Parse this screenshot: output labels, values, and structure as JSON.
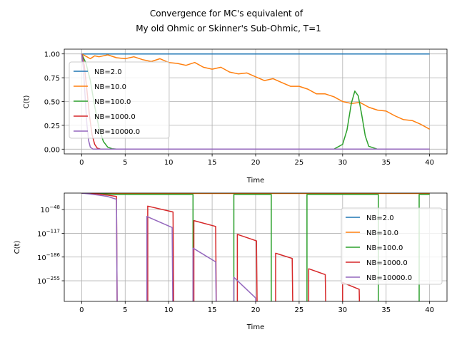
{
  "figure_title": [
    "Convergence for MC's equivalent of",
    "My old Ohmic or Skinner's Sub-Ohmic, T=1"
  ],
  "colors": {
    "NB=2.0": "#1f77b4",
    "NB=10.0": "#ff7f0e",
    "NB=100.0": "#2ca02c",
    "NB=1000.0": "#d62728",
    "NB=10000.0": "#9467bd"
  },
  "chart_data": [
    {
      "type": "line",
      "title": "",
      "xlabel": "Time",
      "ylabel": "C(t)",
      "xlim": [
        -2,
        42
      ],
      "ylim": [
        -0.05,
        1.05
      ],
      "xticks": [
        0,
        5,
        10,
        15,
        20,
        25,
        30,
        35,
        40
      ],
      "xtick_labels": [
        "0",
        "5",
        "10",
        "15",
        "20",
        "25",
        "30",
        "35",
        "40"
      ],
      "yticks": [
        0.0,
        0.25,
        0.5,
        0.75,
        1.0
      ],
      "ytick_labels": [
        "0.00",
        "0.25",
        "0.50",
        "0.75",
        "1.00"
      ],
      "grid": true,
      "legend_position": "center-left",
      "series": [
        {
          "name": "NB=2.0",
          "x": [
            0,
            40
          ],
          "y": [
            1.0,
            1.0
          ]
        },
        {
          "name": "NB=10.0",
          "x": [
            0,
            1,
            1.5,
            2,
            3,
            4,
            5,
            6,
            7,
            8,
            9,
            10,
            11,
            12,
            13,
            14,
            15,
            16,
            17,
            18,
            19,
            20,
            21,
            22,
            23,
            24,
            25,
            26,
            27,
            28,
            29,
            30,
            31,
            32,
            33,
            34,
            35,
            36,
            37,
            38,
            39,
            40
          ],
          "y": [
            1.0,
            0.95,
            0.98,
            0.97,
            0.99,
            0.96,
            0.95,
            0.97,
            0.94,
            0.92,
            0.95,
            0.91,
            0.9,
            0.88,
            0.91,
            0.86,
            0.84,
            0.86,
            0.81,
            0.79,
            0.8,
            0.76,
            0.72,
            0.74,
            0.7,
            0.66,
            0.66,
            0.63,
            0.58,
            0.58,
            0.55,
            0.5,
            0.48,
            0.49,
            0.44,
            0.41,
            0.4,
            0.35,
            0.31,
            0.3,
            0.26,
            0.21
          ]
        },
        {
          "name": "NB=100.0",
          "x": [
            0,
            0.5,
            1,
            1.5,
            2,
            2.5,
            3,
            3.5,
            4,
            29,
            30,
            30.5,
            31,
            31.4,
            31.8,
            32.2,
            32.6,
            33,
            34,
            40
          ],
          "y": [
            1.0,
            0.9,
            0.72,
            0.45,
            0.22,
            0.08,
            0.02,
            0.005,
            0.0,
            0.0,
            0.05,
            0.2,
            0.48,
            0.61,
            0.56,
            0.36,
            0.14,
            0.03,
            0.0,
            0.0
          ]
        },
        {
          "name": "NB=1000.0",
          "x": [
            0,
            0.3,
            0.6,
            0.9,
            1.2,
            1.5,
            1.8,
            2.2,
            40
          ],
          "y": [
            1.0,
            0.88,
            0.62,
            0.35,
            0.15,
            0.05,
            0.01,
            0.0,
            0.0
          ]
        },
        {
          "name": "NB=10000.0",
          "x": [
            0,
            0.2,
            0.4,
            0.6,
            0.8,
            1.0,
            1.3,
            40
          ],
          "y": [
            1.0,
            0.85,
            0.55,
            0.26,
            0.09,
            0.02,
            0.0,
            0.0
          ]
        }
      ]
    },
    {
      "type": "line",
      "title": "",
      "xlabel": "Time",
      "ylabel": "C(t)",
      "yscale": "log",
      "xlim": [
        -2,
        42
      ],
      "ylog_lim": [
        -315,
        0
      ],
      "xticks": [
        0,
        5,
        10,
        15,
        20,
        25,
        30,
        35,
        40
      ],
      "xtick_labels": [
        "0",
        "5",
        "10",
        "15",
        "20",
        "25",
        "30",
        "35",
        "40"
      ],
      "ytick_exponents": [
        -48,
        -117,
        -186,
        -255
      ],
      "ytick_labels": [
        "10",
        "10",
        "10",
        "10"
      ],
      "ytick_superscripts": [
        "−48",
        "−117",
        "−186",
        "−255"
      ],
      "grid": true,
      "legend_position": "right",
      "series": [
        {
          "name": "NB=2.0",
          "x": [
            0,
            40
          ],
          "log10y": [
            0,
            0
          ]
        },
        {
          "name": "NB=10.0",
          "x": [
            0,
            1,
            40
          ],
          "log10y": [
            0,
            -1,
            -1
          ]
        },
        {
          "name": "NB=100.0",
          "x": [
            0,
            3,
            4,
            4.05,
            12.8,
            12.8,
            17.5,
            17.5,
            21.8,
            21.8,
            25.9,
            25.9,
            34.1,
            34.1,
            38.8,
            38.8,
            40
          ],
          "log10y": [
            0,
            -3,
            -4,
            -4,
            -4,
            -400,
            -400,
            -4,
            -4,
            -400,
            -400,
            -4,
            -4,
            -400,
            -400,
            -4,
            -4
          ]
        },
        {
          "name": "NB=1000.0",
          "x": [
            0,
            1,
            2,
            3,
            4,
            4.1,
            4.2,
            7.6,
            7.6,
            10.5,
            10.6,
            12.9,
            12.9,
            15.4,
            15.5,
            17.9,
            17.9,
            20.1,
            20.2,
            22.3,
            22.3,
            24.2,
            24.3,
            26.1,
            26.1,
            28,
            28.1,
            30,
            30,
            31.9,
            32,
            40
          ],
          "log10y": [
            0,
            -1,
            -3,
            -6,
            -10,
            -400,
            -400,
            -400,
            -38,
            -55,
            -400,
            -400,
            -80,
            -97,
            -400,
            -400,
            -120,
            -139,
            -400,
            -400,
            -175,
            -190,
            -400,
            -400,
            -220,
            -237,
            -400,
            -400,
            -260,
            -280,
            -400,
            -400
          ]
        },
        {
          "name": "NB=10000.0",
          "x": [
            0,
            1,
            2,
            3,
            4,
            4.1,
            4.2,
            7.5,
            7.5,
            10.4,
            10.5,
            12.8,
            12.8,
            15.4,
            15.5,
            17.5,
            17.5,
            20,
            20.1,
            40
          ],
          "log10y": [
            0,
            -3,
            -6,
            -10,
            -18,
            -400,
            -400,
            -400,
            -68,
            -100,
            -400,
            -400,
            -160,
            -200,
            -400,
            -400,
            -245,
            -305,
            -400,
            -400
          ]
        }
      ]
    }
  ]
}
